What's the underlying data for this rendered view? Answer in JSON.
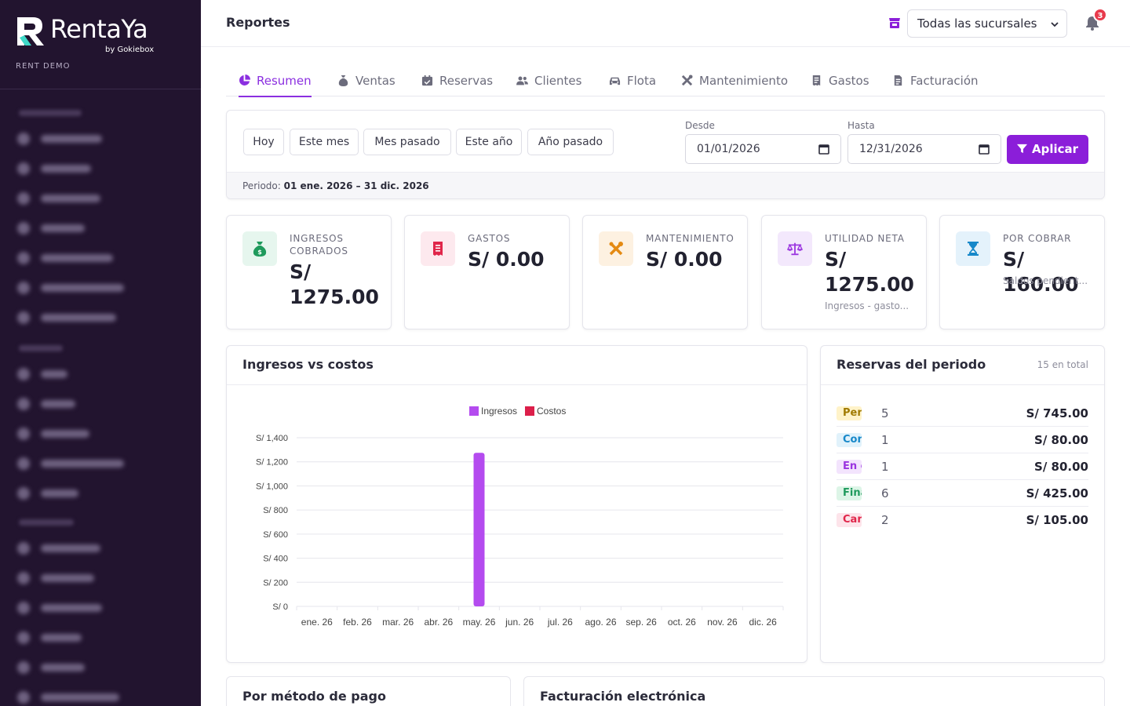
{
  "brand": {
    "name": "RentaYa",
    "by": "by Gokiebox",
    "workspace": "RENT DEMO"
  },
  "header": {
    "title": "Reportes",
    "branch_value": "Todas las sucursales",
    "notifications_count": "3"
  },
  "tabs": [
    {
      "label": "Resumen",
      "icon": "chart-pie-icon",
      "active": true
    },
    {
      "label": "Ventas",
      "icon": "money-bag-icon"
    },
    {
      "label": "Reservas",
      "icon": "calendar-check-icon"
    },
    {
      "label": "Clientes",
      "icon": "users-icon"
    },
    {
      "label": "Flota",
      "icon": "car-icon"
    },
    {
      "label": "Mantenimiento",
      "icon": "tools-icon"
    },
    {
      "label": "Gastos",
      "icon": "receipt-icon"
    },
    {
      "label": "Facturación",
      "icon": "invoice-icon"
    }
  ],
  "filters": {
    "quick": [
      "Hoy",
      "Este mes",
      "Mes pasado",
      "Este año",
      "Año pasado"
    ],
    "from_label": "Desde",
    "from_value": "01/01/2026",
    "to_label": "Hasta",
    "to_value": "12/31/2026",
    "apply_label": "Aplicar",
    "period_label": "Periodo:",
    "period_value": "01 ene. 2026 – 31 dic. 2026"
  },
  "stats": [
    {
      "label": "INGRESOS COBRADOS",
      "value_line1": "S/",
      "value_line2": "1275.00",
      "icon": "money-bag-icon",
      "color": "#1f9a5c",
      "bg": "#e6f6ee"
    },
    {
      "label": "GASTOS",
      "value": "S/ 0.00",
      "icon": "receipt-icon",
      "color": "#e0264a",
      "bg": "#fde9ee"
    },
    {
      "label": "MANTENIMIENTO",
      "value": "S/ 0.00",
      "icon": "tools-icon",
      "color": "#e48a12",
      "bg": "#fdf1e1"
    },
    {
      "label": "UTILIDAD NETA",
      "value_line1": "S/",
      "value_line2": "1275.00",
      "sub": "Ingresos - gasto...",
      "icon": "scale-icon",
      "color": "#9b35e0",
      "bg": "#f3e8fc"
    },
    {
      "label": "POR COBRAR",
      "value": "S/ 160.00",
      "sub": "Saldos pendient...",
      "icon": "hourglass-icon",
      "color": "#1788c9",
      "bg": "#e4f2fb"
    }
  ],
  "chart_card_title": "Ingresos vs costos",
  "chart_data": {
    "type": "bar",
    "categories": [
      "ene. 26",
      "feb. 26",
      "mar. 26",
      "abr. 26",
      "may. 26",
      "jun. 26",
      "jul. 26",
      "ago. 26",
      "sep. 26",
      "oct. 26",
      "nov. 26",
      "dic. 26"
    ],
    "series": [
      {
        "name": "Ingresos",
        "color": "#b44bef",
        "values": [
          0,
          0,
          0,
          0,
          1275,
          0,
          0,
          0,
          0,
          0,
          0,
          0
        ]
      },
      {
        "name": "Costos",
        "color": "#dc1f4a",
        "values": [
          0,
          0,
          0,
          0,
          0,
          0,
          0,
          0,
          0,
          0,
          0,
          0
        ]
      }
    ],
    "ylim": [
      0,
      1400
    ],
    "yticks": [
      "S/ 0",
      "S/ 200",
      "S/ 400",
      "S/ 600",
      "S/ 800",
      "S/ 1,000",
      "S/ 1,200",
      "S/ 1,400"
    ],
    "ytick_values": [
      0,
      200,
      400,
      600,
      800,
      1000,
      1200,
      1400
    ],
    "legend": "top-center",
    "grid": true
  },
  "reservations": {
    "title": "Reservas del periodo",
    "total": "15 en total",
    "rows": [
      {
        "status": "Pendiente",
        "count": "5",
        "amount": "S/ 745.00",
        "color": "#a07a00",
        "bg": "#fff3c9"
      },
      {
        "status": "Confirmada",
        "count": "1",
        "amount": "S/ 80.00",
        "color": "#1788c9",
        "bg": "#e1f2fb"
      },
      {
        "status": "En curso",
        "count": "1",
        "amount": "S/ 80.00",
        "color": "#9b35e0",
        "bg": "#f3e4fd"
      },
      {
        "status": "Finalizada",
        "count": "6",
        "amount": "S/ 425.00",
        "color": "#1f9a5c",
        "bg": "#ddf5e7"
      },
      {
        "status": "Cancelada",
        "count": "2",
        "amount": "S/ 105.00",
        "color": "#e0264a",
        "bg": "#fde4ea"
      }
    ]
  },
  "bottom": {
    "payment_title": "Por método de pago",
    "billing_title": "Facturación electrónica"
  }
}
